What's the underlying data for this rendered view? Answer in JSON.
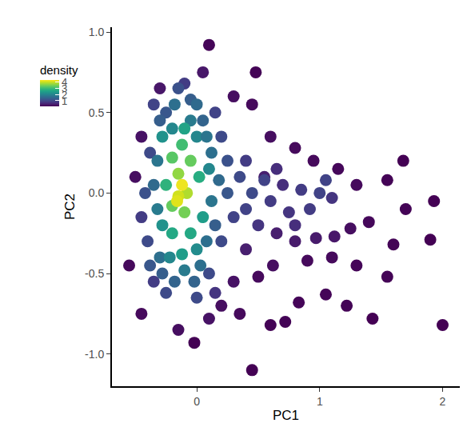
{
  "chart_data": {
    "type": "scatter",
    "x_label": "PC1",
    "y_label": "PC2",
    "marker": "circle",
    "color": "viridis",
    "x": [
      2.0,
      0.45,
      -0.02,
      0.1,
      1.93,
      1.9,
      1.6,
      1.55,
      1.43,
      1.22,
      1.05,
      0.83,
      0.72,
      0.6,
      0.5,
      0.62,
      0.9,
      1.1,
      1.3,
      1.7,
      1.68,
      1.55,
      1.4,
      1.25,
      1.12,
      0.97,
      0.8,
      0.65,
      0.4,
      0.3,
      0.2,
      0.35,
      0.95,
      0.8,
      1.15,
      1.3,
      0.6,
      0.45,
      0.3,
      0.48,
      -0.45,
      -0.55,
      -0.5,
      -0.45,
      -0.3,
      0.05,
      -0.15,
      0.1,
      0.55,
      0.7,
      0.85,
      1.0,
      1.1,
      0.92,
      0.75,
      0.6,
      0.45,
      0.35,
      0.3,
      0.5,
      0.2,
      0.15,
      0.25,
      0.2,
      0.1,
      -0.35,
      -0.4,
      -0.42,
      -0.38,
      -0.25,
      -0.05,
      0.05,
      -0.25,
      0.0,
      1.05,
      0.65,
      0.8,
      -0.1,
      -0.45,
      0.15,
      -0.3,
      -0.38,
      0.25,
      0.4,
      0.55,
      0.4,
      -0.35,
      -0.15,
      0.12,
      0.12,
      0.08,
      -0.3,
      -0.32,
      -0.32,
      -0.2,
      0.0,
      -0.1,
      0.03,
      -0.18,
      0.18,
      -0.28,
      -0.28,
      -0.35,
      -0.22,
      0.0,
      0.1,
      -0.05,
      0.08,
      0.15,
      -0.02,
      -0.28,
      0.0,
      -0.18,
      0.05,
      -0.12,
      -0.1,
      -0.2,
      -0.05,
      -0.25,
      0.02,
      -0.12,
      -0.2,
      -0.05,
      -0.15,
      -0.1,
      -0.2,
      -0.08,
      -0.15,
      -0.12,
      -0.16
    ],
    "values": [
      -0.82,
      -1.1,
      -0.93,
      0.92,
      -0.05,
      -0.29,
      -0.32,
      -0.52,
      -0.78,
      -0.7,
      -0.63,
      -0.68,
      -0.8,
      -0.82,
      -0.52,
      -0.45,
      -0.42,
      -0.4,
      -0.45,
      -0.1,
      0.2,
      0.08,
      -0.18,
      -0.22,
      -0.27,
      -0.28,
      -0.3,
      -0.25,
      -0.35,
      -0.55,
      -0.7,
      -0.75,
      0.2,
      0.28,
      0.15,
      0.05,
      0.35,
      0.55,
      0.6,
      0.75,
      -0.75,
      -0.45,
      0.1,
      0.35,
      0.65,
      0.75,
      -0.85,
      -0.78,
      0.1,
      0.05,
      0.02,
      0.0,
      -0.03,
      -0.1,
      -0.12,
      -0.05,
      0.0,
      0.1,
      -0.15,
      -0.2,
      0.35,
      0.5,
      0.2,
      -0.3,
      -0.5,
      -0.55,
      -0.3,
      0.0,
      0.25,
      0.5,
      0.58,
      0.45,
      -0.62,
      -0.65,
      0.08,
      0.15,
      -0.2,
      0.68,
      -0.15,
      -0.62,
      0.45,
      -0.45,
      0.0,
      -0.1,
      0.08,
      0.2,
      0.55,
      0.65,
      0.25,
      -0.05,
      -0.3,
      -0.4,
      -0.1,
      0.2,
      0.4,
      0.35,
      -0.48,
      -0.45,
      -0.55,
      0.08,
      -0.2,
      0.35,
      0.05,
      -0.4,
      -0.35,
      0.15,
      0.45,
      0.35,
      -0.2,
      -0.55,
      -0.5,
      0.55,
      0.55,
      -0.15,
      -0.38,
      0.4,
      -0.25,
      -0.25,
      0.05,
      0.1,
      0.3,
      0.22,
      0.2,
      0.12,
      -0.12,
      -0.08,
      0.0,
      -0.02,
      0.05,
      -0.05
    ],
    "density": [
      0.05,
      0.05,
      0.05,
      0.1,
      0.05,
      0.05,
      0.08,
      0.08,
      0.05,
      0.08,
      0.1,
      0.1,
      0.08,
      0.08,
      0.15,
      0.2,
      0.15,
      0.15,
      0.1,
      0.08,
      0.05,
      0.08,
      0.12,
      0.2,
      0.3,
      0.35,
      0.35,
      0.4,
      0.4,
      0.25,
      0.2,
      0.15,
      0.15,
      0.15,
      0.12,
      0.15,
      0.2,
      0.15,
      0.2,
      0.08,
      0.15,
      0.15,
      0.2,
      0.25,
      0.3,
      0.3,
      0.2,
      0.25,
      0.4,
      0.6,
      0.8,
      0.9,
      0.7,
      0.8,
      0.7,
      0.8,
      1.0,
      1.0,
      0.9,
      0.7,
      1.0,
      0.9,
      1.1,
      1.0,
      1.0,
      0.8,
      1.0,
      1.1,
      1.0,
      1.2,
      1.3,
      1.4,
      1.0,
      1.0,
      0.9,
      0.6,
      0.6,
      0.8,
      0.8,
      0.7,
      1.3,
      1.2,
      1.2,
      0.9,
      0.9,
      0.8,
      0.9,
      1.1,
      1.6,
      1.7,
      1.6,
      1.6,
      1.8,
      1.7,
      2.0,
      2.0,
      1.8,
      1.6,
      1.4,
      1.5,
      2.2,
      2.2,
      1.5,
      2.0,
      2.1,
      2.0,
      1.8,
      1.7,
      1.3,
      1.4,
      1.3,
      1.5,
      1.6,
      2.4,
      2.4,
      2.5,
      2.6,
      2.6,
      2.8,
      2.7,
      3.0,
      3.2,
      3.3,
      3.6,
      3.4,
      3.3,
      3.8,
      4.0,
      4.2,
      4.1
    ],
    "density_title": "density",
    "density_range": [
      0.05,
      4.3
    ],
    "density_ticks": [
      1,
      2,
      3,
      4
    ],
    "xlim": [
      -0.69,
      2.14
    ],
    "xticks": [
      0,
      1,
      2
    ],
    "ylim": [
      -1.2,
      1.03
    ],
    "yticks": [
      {
        "value": -1,
        "label": "-1.0"
      },
      -0.5,
      {
        "value": 0,
        "label": "0.0"
      },
      0.5,
      {
        "value": 1,
        "label": "1.0"
      }
    ],
    "grid": false
  }
}
